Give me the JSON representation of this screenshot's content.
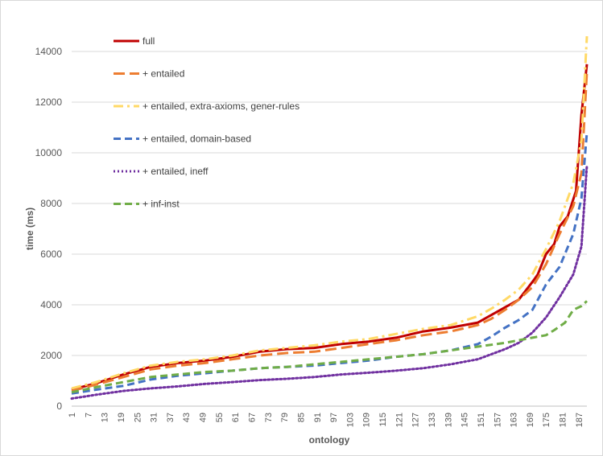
{
  "chart_data": {
    "type": "line",
    "title": "",
    "xlabel": "ontology",
    "ylabel": "time (ms)",
    "ylim": [
      0,
      14000
    ],
    "yticks": [
      0,
      2000,
      4000,
      6000,
      8000,
      10000,
      12000,
      14000
    ],
    "ytick_labels": [
      "0",
      "2000",
      "4000",
      "6000",
      "8000",
      "10000",
      "12000",
      "14000"
    ],
    "xlim": [
      1,
      190
    ],
    "xticks": [
      1,
      7,
      13,
      19,
      25,
      31,
      37,
      43,
      49,
      55,
      61,
      67,
      73,
      79,
      85,
      91,
      97,
      103,
      109,
      115,
      121,
      127,
      133,
      139,
      145,
      151,
      157,
      163,
      169,
      175,
      181,
      187
    ],
    "xtick_labels": [
      "1",
      "7",
      "13",
      "19",
      "25",
      "31",
      "37",
      "43",
      "49",
      "55",
      "61",
      "67",
      "73",
      "79",
      "85",
      "91",
      "97",
      "103",
      "109",
      "115",
      "121",
      "127",
      "133",
      "139",
      "145",
      "151",
      "157",
      "163",
      "169",
      "175",
      "181",
      "187"
    ],
    "grid": "horizontal",
    "legend_position": "top-left",
    "series": [
      {
        "name": "full",
        "color": "#c00000",
        "style": "solid",
        "x": [
          1,
          10,
          20,
          30,
          40,
          50,
          60,
          70,
          80,
          90,
          100,
          110,
          120,
          130,
          140,
          150,
          155,
          160,
          165,
          170,
          172,
          175,
          178,
          180,
          183,
          186,
          188,
          190
        ],
        "y": [
          650,
          900,
          1250,
          1550,
          1700,
          1800,
          1950,
          2150,
          2250,
          2300,
          2450,
          2550,
          2700,
          2950,
          3100,
          3300,
          3600,
          3900,
          4200,
          4900,
          5200,
          6000,
          6400,
          7100,
          7500,
          8500,
          11500,
          13500
        ]
      },
      {
        "name": "+ entailed",
        "color": "#ed7d31",
        "style": "long-dash",
        "x": [
          1,
          10,
          20,
          30,
          40,
          50,
          60,
          70,
          80,
          90,
          100,
          110,
          120,
          130,
          140,
          150,
          155,
          160,
          165,
          170,
          175,
          180,
          185,
          188,
          190
        ],
        "y": [
          600,
          850,
          1150,
          1450,
          1600,
          1700,
          1850,
          2000,
          2100,
          2150,
          2300,
          2450,
          2600,
          2800,
          2950,
          3200,
          3450,
          3800,
          4200,
          4700,
          5600,
          6800,
          7900,
          9200,
          13200
        ]
      },
      {
        "name": "+ entailed, extra-axioms, gener-rules",
        "color": "#ffd966",
        "style": "dash-dot",
        "x": [
          1,
          10,
          20,
          30,
          40,
          50,
          60,
          70,
          80,
          90,
          100,
          110,
          120,
          130,
          140,
          150,
          155,
          160,
          165,
          170,
          175,
          180,
          185,
          188,
          190
        ],
        "y": [
          700,
          950,
          1300,
          1600,
          1750,
          1850,
          2000,
          2200,
          2300,
          2400,
          2550,
          2650,
          2850,
          3050,
          3200,
          3550,
          3850,
          4200,
          4600,
          5200,
          6200,
          7300,
          8800,
          10500,
          14600
        ]
      },
      {
        "name": "+ entailed, domain-based",
        "color": "#4472c4",
        "style": "dash",
        "x": [
          1,
          10,
          20,
          30,
          40,
          50,
          60,
          70,
          80,
          90,
          100,
          110,
          120,
          130,
          140,
          150,
          155,
          160,
          165,
          170,
          175,
          180,
          185,
          188,
          190
        ],
        "y": [
          500,
          650,
          800,
          1050,
          1200,
          1300,
          1400,
          1500,
          1550,
          1600,
          1700,
          1800,
          1950,
          2050,
          2200,
          2450,
          2750,
          3100,
          3400,
          3800,
          4800,
          5500,
          6800,
          8200,
          10800
        ]
      },
      {
        "name": "+ entailed, ineff",
        "color": "#7030a0",
        "style": "dot",
        "x": [
          1,
          10,
          20,
          30,
          40,
          50,
          60,
          70,
          80,
          90,
          100,
          110,
          120,
          130,
          140,
          150,
          155,
          160,
          165,
          170,
          175,
          180,
          185,
          188,
          190
        ],
        "y": [
          300,
          450,
          600,
          700,
          780,
          880,
          950,
          1030,
          1080,
          1150,
          1250,
          1320,
          1400,
          1500,
          1650,
          1850,
          2050,
          2250,
          2500,
          2900,
          3500,
          4300,
          5200,
          6300,
          9500
        ]
      },
      {
        "name": "+ inf-inst",
        "color": "#70ad47",
        "style": "dash",
        "x": [
          1,
          10,
          20,
          30,
          40,
          50,
          60,
          70,
          80,
          90,
          100,
          110,
          120,
          130,
          140,
          150,
          160,
          165,
          170,
          175,
          178,
          182,
          185,
          188,
          190
        ],
        "y": [
          550,
          750,
          950,
          1150,
          1250,
          1350,
          1400,
          1500,
          1550,
          1650,
          1750,
          1850,
          1950,
          2050,
          2200,
          2350,
          2500,
          2600,
          2700,
          2800,
          3000,
          3300,
          3800,
          3950,
          4150
        ]
      }
    ]
  }
}
